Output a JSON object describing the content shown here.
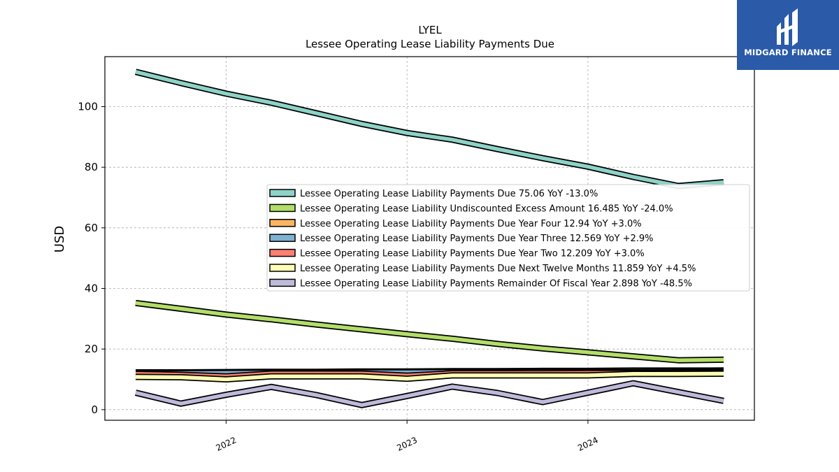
{
  "chart_data": {
    "type": "line",
    "title": "LYEL",
    "subtitle": "Lessee Operating Lease Liability Payments Due",
    "xlabel": "",
    "ylabel": "USD",
    "x_ticks": [
      "2022",
      "2023",
      "2024"
    ],
    "x_tick_values": [
      2022.0,
      2023.0,
      2024.0
    ],
    "xlim": [
      2021.33,
      2024.92
    ],
    "y_ticks": [
      "0",
      "20",
      "40",
      "60",
      "80",
      "100"
    ],
    "ylim": [
      -3.5,
      116.5
    ],
    "grid": true,
    "legend_position": "center-right",
    "x": [
      2021.5,
      2021.75,
      2022.0,
      2022.25,
      2022.5,
      2022.75,
      2023.0,
      2023.25,
      2023.5,
      2023.75,
      2024.0,
      2024.25,
      2024.5,
      2024.75
    ],
    "series": [
      {
        "name": "Lessee Operating Lease Liability Payments Due",
        "legend": "Lessee Operating Lease Liability Payments Due  75.06 YoY -13.0%",
        "color": "#8dd3c7",
        "values": [
          111.5,
          107.8,
          104.3,
          101.3,
          97.8,
          94.3,
          91.3,
          89.1,
          86.0,
          83.0,
          80.2,
          76.8,
          73.8,
          75.06
        ]
      },
      {
        "name": "Lessee Operating Lease Liability Undiscounted Excess Amount",
        "legend": "Lessee Operating Lease Liability Undiscounted Excess Amount  16.485 YoY -24.0%",
        "color": "#b3de69",
        "values": [
          35.2,
          33.3,
          31.4,
          29.8,
          28.1,
          26.5,
          24.9,
          23.4,
          21.7,
          20.2,
          18.9,
          17.6,
          16.3,
          16.485
        ]
      },
      {
        "name": "Lessee Operating Lease Liability Payments Due Year Four",
        "legend": "Lessee Operating Lease Liability Payments Due Year Four  12.94 YoY +3.0%",
        "color": "#fdb462",
        "values": [
          12.3,
          12.3,
          12.4,
          12.5,
          12.5,
          12.6,
          12.6,
          12.7,
          12.7,
          12.8,
          12.8,
          12.9,
          12.9,
          12.94
        ]
      },
      {
        "name": "Lessee Operating Lease Liability Payments Due Year Three",
        "legend": "Lessee Operating Lease Liability Payments Due Year Three  12.569 YoY +2.9%",
        "color": "#80b1d3",
        "values": [
          12.0,
          12.0,
          12.1,
          12.2,
          12.2,
          12.3,
          12.3,
          12.4,
          12.4,
          12.5,
          12.5,
          12.5,
          12.6,
          12.569
        ]
      },
      {
        "name": "Lessee Operating Lease Liability Payments Due Year Two",
        "legend": "Lessee Operating Lease Liability Payments Due Year Two  12.209 YoY +3.0%",
        "color": "#fb8072",
        "values": [
          11.8,
          11.5,
          11.0,
          11.9,
          11.9,
          11.9,
          11.2,
          12.0,
          12.0,
          12.0,
          12.1,
          12.1,
          12.2,
          12.209
        ]
      },
      {
        "name": "Lessee Operating Lease Liability Payments Due Next Twelve Months",
        "legend": "Lessee Operating Lease Liability Payments Due Next Twelve Months  11.859 YoY +4.5%",
        "color": "#ffffb3",
        "values": [
          10.8,
          10.7,
          10.0,
          11.0,
          11.0,
          11.0,
          10.2,
          11.3,
          11.3,
          11.3,
          11.3,
          11.8,
          11.8,
          11.859
        ]
      },
      {
        "name": "Lessee Operating Lease Liability Payments Remainder Of Fiscal Year",
        "legend": "Lessee Operating Lease Liability Payments Remainder Of Fiscal Year  2.898 YoY -48.5%",
        "color": "#bebada",
        "values": [
          5.6,
          2.0,
          4.9,
          7.5,
          4.8,
          1.5,
          4.5,
          7.6,
          5.5,
          2.5,
          5.6,
          8.7,
          5.8,
          2.898
        ]
      }
    ]
  },
  "logo": {
    "text": "MIDGARD FINANCE",
    "color": "#2a5aa8"
  }
}
